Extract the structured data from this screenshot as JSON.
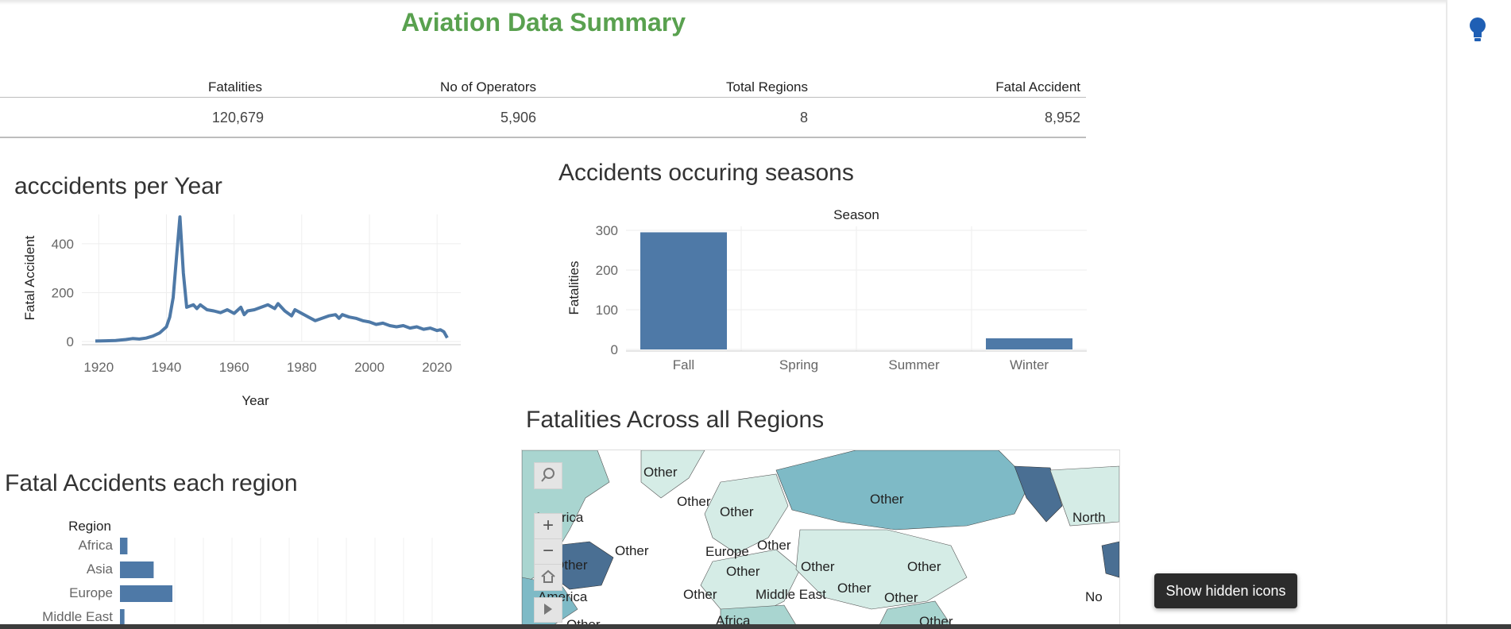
{
  "dashboard": {
    "title": "Aviation Data Summary"
  },
  "kpis": [
    {
      "label": "Fatalities",
      "value": "120,679"
    },
    {
      "label": "No of Operators",
      "value": "5,906"
    },
    {
      "label": "Total Regions",
      "value": "8"
    },
    {
      "label": "Fatal Accident",
      "value": "8,952"
    }
  ],
  "line_chart": {
    "title": "acccidents per Year",
    "chart_data": {
      "type": "line",
      "xlabel": "Year",
      "ylabel": "Fatal Accident",
      "xlim": [
        1915,
        2027
      ],
      "ylim": [
        0,
        520
      ],
      "x_ticks": [
        "1920",
        "1940",
        "1960",
        "1980",
        "2000",
        "2020"
      ],
      "y_ticks": [
        "0",
        "200",
        "400"
      ],
      "x": [
        1919,
        1922,
        1925,
        1928,
        1930,
        1932,
        1934,
        1936,
        1938,
        1940,
        1941,
        1942,
        1943,
        1944,
        1945,
        1946,
        1948,
        1949,
        1950,
        1952,
        1954,
        1956,
        1958,
        1960,
        1962,
        1963,
        1964,
        1966,
        1968,
        1970,
        1972,
        1973,
        1975,
        1977,
        1978,
        1980,
        1982,
        1984,
        1986,
        1988,
        1990,
        1991,
        1992,
        1994,
        1996,
        1998,
        2000,
        2002,
        2004,
        2006,
        2008,
        2010,
        2012,
        2014,
        2016,
        2018,
        2020,
        2021,
        2022,
        2023
      ],
      "y": [
        2,
        3,
        4,
        8,
        12,
        10,
        14,
        22,
        35,
        60,
        100,
        180,
        350,
        510,
        280,
        140,
        150,
        135,
        150,
        130,
        125,
        118,
        130,
        115,
        140,
        110,
        125,
        130,
        140,
        150,
        135,
        155,
        125,
        105,
        130,
        115,
        100,
        85,
        95,
        105,
        110,
        95,
        110,
        100,
        95,
        85,
        80,
        70,
        75,
        65,
        60,
        65,
        55,
        60,
        50,
        55,
        45,
        48,
        40,
        15
      ],
      "grid": true
    }
  },
  "season_chart": {
    "title": "Accidents occuring  seasons",
    "chart_data": {
      "type": "bar",
      "header": "Season",
      "categories": [
        "Fall",
        "Spring",
        "Summer",
        "Winter"
      ],
      "values": [
        295,
        0,
        0,
        28
      ],
      "ylabel": "Fatalities",
      "ylim": [
        0,
        310
      ],
      "y_ticks": [
        "0",
        "100",
        "200",
        "300"
      ],
      "grid": true
    }
  },
  "region_chart": {
    "title": "Fatal Accidents each region",
    "chart_data": {
      "type": "bar",
      "header": "Region",
      "categories": [
        "Africa",
        "Asia",
        "Europe",
        "Middle East"
      ],
      "values": [
        10,
        45,
        70,
        6
      ]
    }
  },
  "map": {
    "title": "Fatalities Across all Regions",
    "labels": [
      "Other",
      "Other",
      "Other",
      "Other",
      "America",
      "Other",
      "Other",
      "Europe",
      "Other",
      "Other",
      "Other",
      "Other",
      "North",
      "No",
      "Other",
      "Middle East",
      "Other",
      "Other",
      "Other",
      "America",
      "Africa",
      "Other"
    ],
    "tool_icons": [
      "search-icon",
      "zoom-in-icon",
      "zoom-out-icon",
      "home-icon",
      "play-icon"
    ],
    "colors": {
      "light": "#d5ece6",
      "mid": "#a9d5d0",
      "teal": "#7ebac6",
      "dark": "#4a6f93"
    }
  },
  "tooltip": {
    "text": "Show hidden icons"
  },
  "ui": {
    "lightbulb": "lightbulb-icon"
  }
}
